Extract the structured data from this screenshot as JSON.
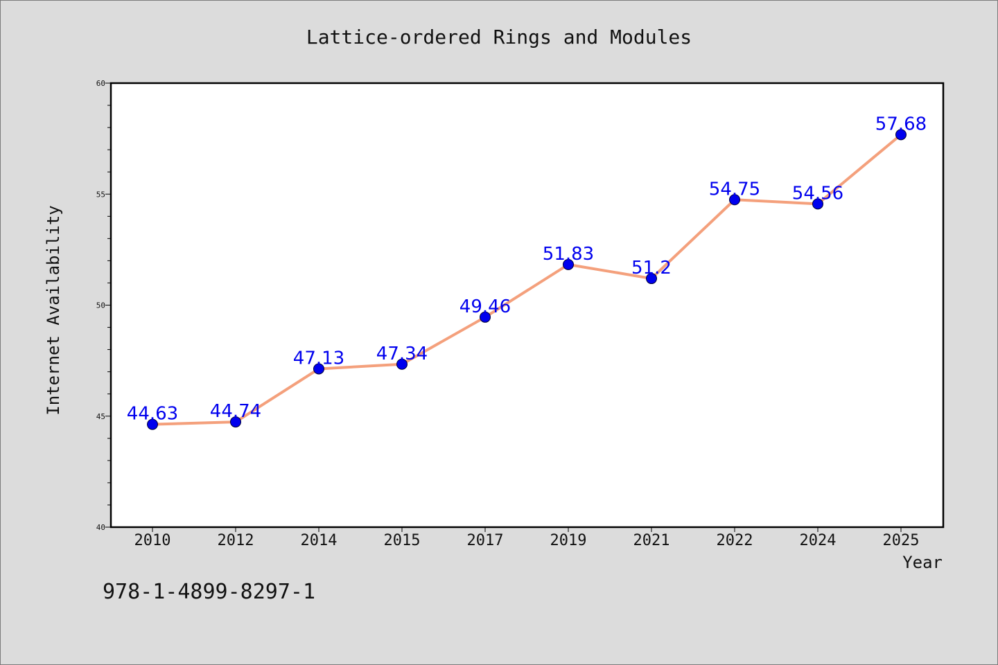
{
  "chart_data": {
    "type": "line",
    "title": "Lattice-ordered Rings and Modules",
    "xlabel": "Year",
    "ylabel": "Internet Availability",
    "categories": [
      "2010",
      "2012",
      "2014",
      "2015",
      "2017",
      "2019",
      "2021",
      "2022",
      "2024",
      "2025"
    ],
    "series": [
      {
        "values": [
          44.63,
          44.74,
          47.13,
          47.34,
          49.46,
          51.83,
          51.2,
          54.75,
          54.56,
          57.68
        ],
        "labels": [
          "44.63",
          "44.74",
          "47.13",
          "47.34",
          "49.46",
          "51.83",
          "51.2",
          "54.75",
          "54.56",
          "57.68"
        ]
      }
    ],
    "ylim": [
      40,
      60
    ],
    "yticks": [
      40,
      45,
      50,
      55,
      60
    ],
    "grid": false,
    "line_color": "#f4a07c",
    "marker_color": "#0000ee"
  },
  "footer": {
    "isbn": "978-1-4899-8297-1"
  }
}
